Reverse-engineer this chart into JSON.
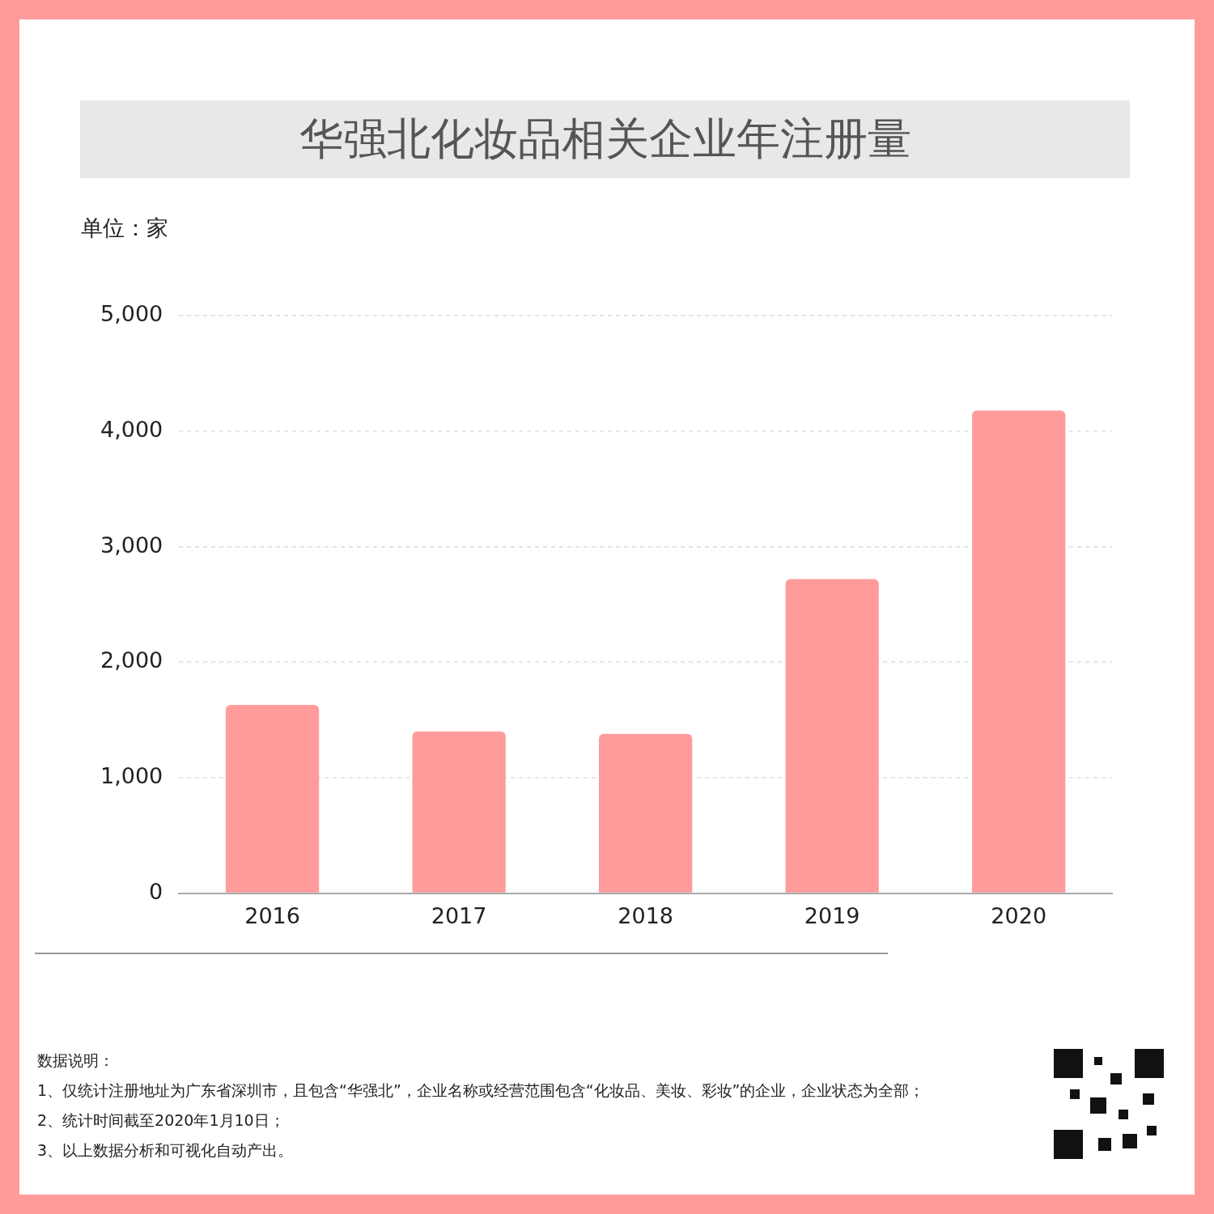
{
  "chart_data": {
    "type": "bar",
    "title": "华强北化妆品相关企业年注册量",
    "ylabel": "单位：家",
    "categories": [
      "2016",
      "2017",
      "2018",
      "2019",
      "2020"
    ],
    "values": [
      1630,
      1400,
      1380,
      2720,
      4180
    ],
    "color": "#ff9b9b",
    "ylim": [
      0,
      5000
    ],
    "yticks": [
      {
        "value": 0,
        "label": "0"
      },
      {
        "value": 1000,
        "label": "1,000"
      },
      {
        "value": 2000,
        "label": "2,000"
      },
      {
        "value": 3000,
        "label": "3,000"
      },
      {
        "value": 4000,
        "label": "4,000"
      },
      {
        "value": 5000,
        "label": "5,000"
      }
    ],
    "grid": "y",
    "legend": false,
    "annotations": [
      "数据说明：",
      "1、仅统计注册地址为广东省深圳市，且包含“华强北”，企业名称或经营范围包含“化妆品、美妆、彩妆”的企业，企业状态为全部；",
      "2、统计时间截至2020年1月10日；",
      "3、以上数据分析和可视化自动产出。"
    ]
  }
}
